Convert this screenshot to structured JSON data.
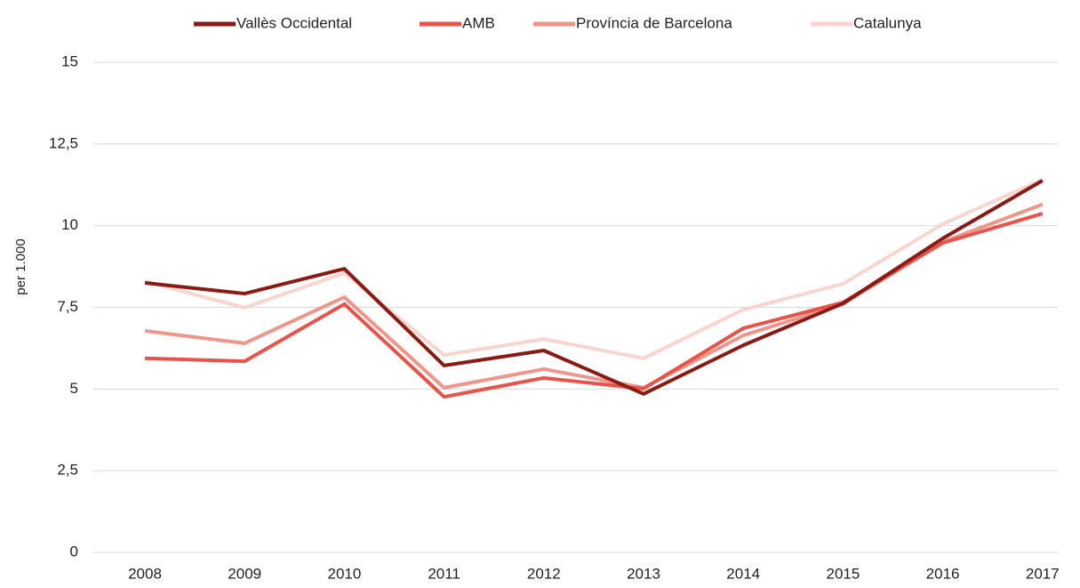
{
  "chart_data": {
    "type": "line",
    "ylabel": "per 1.000",
    "categories": [
      "2008",
      "2009",
      "2010",
      "2011",
      "2012",
      "2013",
      "2014",
      "2015",
      "2016",
      "2017"
    ],
    "series": [
      {
        "name": "Vallès Occidental",
        "color": "#8b1a14",
        "values": [
          8.25,
          7.92,
          8.68,
          5.72,
          6.18,
          4.85,
          6.34,
          7.62,
          9.61,
          11.38
        ]
      },
      {
        "name": "AMB",
        "color": "#e8534a",
        "values": [
          5.94,
          5.85,
          7.6,
          4.76,
          5.34,
          5.01,
          6.86,
          7.65,
          9.47,
          10.37
        ]
      },
      {
        "name": "Província de Barcelona",
        "color": "#f0958a",
        "values": [
          6.78,
          6.4,
          7.81,
          5.04,
          5.61,
          5.04,
          6.64,
          7.6,
          9.5,
          10.65
        ]
      },
      {
        "name": "Catalunya",
        "color": "#f9d5d0",
        "values": [
          8.3,
          7.49,
          8.55,
          6.04,
          6.53,
          5.94,
          7.43,
          8.22,
          10.05,
          11.41
        ]
      }
    ],
    "ylim": [
      0,
      15
    ],
    "yticks": [
      0,
      {
        "value": 2.5,
        "label": "2,5"
      },
      5,
      {
        "value": 7.5,
        "label": "7,5"
      },
      10,
      {
        "value": 12.5,
        "label": "12,5"
      },
      15
    ],
    "grid": true,
    "legend": "top"
  }
}
